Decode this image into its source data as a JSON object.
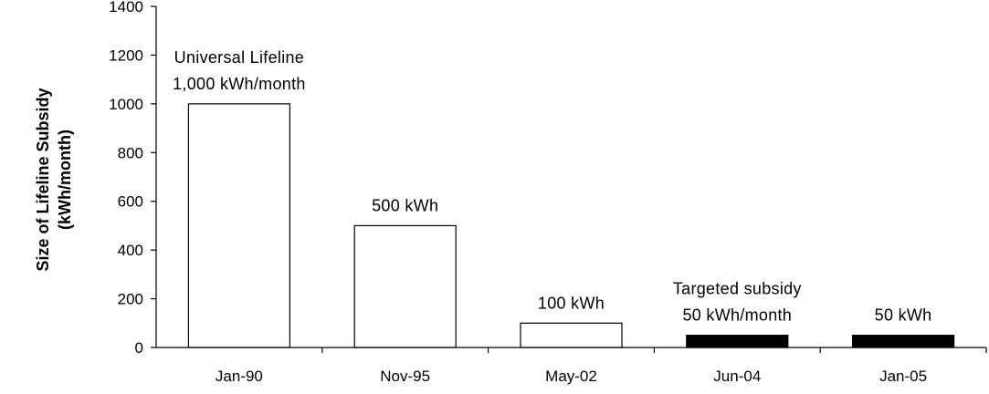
{
  "chart_data": {
    "type": "bar",
    "categories": [
      "Jan-90",
      "Nov-95",
      "May-02",
      "Jun-04",
      "Jan-05"
    ],
    "values": [
      1000,
      500,
      100,
      50,
      50
    ],
    "bar_fills": [
      "#ffffff",
      "#ffffff",
      "#ffffff",
      "#000000",
      "#000000"
    ],
    "title": "",
    "xlabel": "",
    "ylabel_line1": "Size of Lifeline Subsidy",
    "ylabel_line2": "(kWh/month)",
    "ylim": [
      0,
      1400
    ],
    "yticks": [
      "0",
      "200",
      "400",
      "600",
      "800",
      "1000",
      "1200",
      "1400"
    ],
    "grid": false,
    "annotations": [
      {
        "category": "Jan-90",
        "lines": [
          "Universal Lifeline",
          "1,000 kWh/month"
        ]
      },
      {
        "category": "Nov-95",
        "lines": [
          "500 kWh"
        ]
      },
      {
        "category": "May-02",
        "lines": [
          "100 kWh"
        ]
      },
      {
        "category": "Jun-04",
        "lines": [
          "Targeted subsidy",
          "50 kWh/month"
        ]
      },
      {
        "category": "Jan-05",
        "lines": [
          "50 kWh"
        ]
      }
    ]
  }
}
